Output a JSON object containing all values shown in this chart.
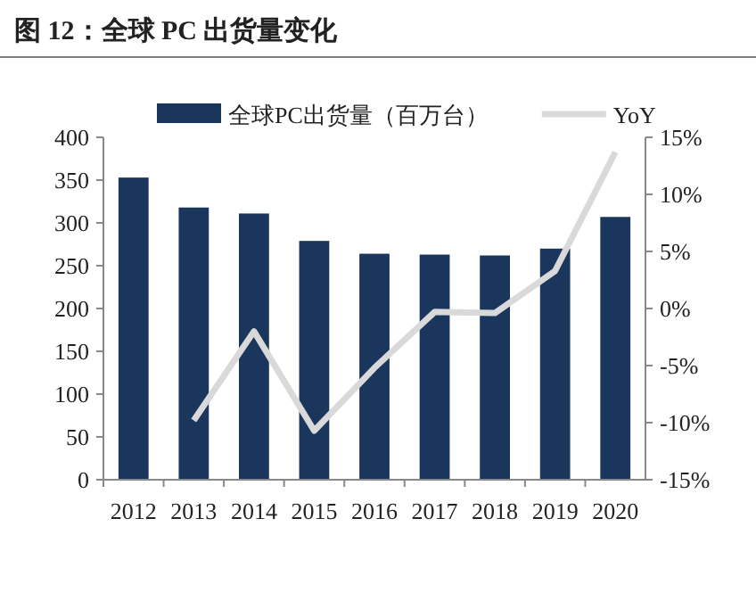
{
  "chart_data": {
    "type": "bar",
    "title": "图 12：全球 PC 出货量变化",
    "categories": [
      "2012",
      "2013",
      "2014",
      "2015",
      "2016",
      "2017",
      "2018",
      "2019",
      "2020"
    ],
    "series": [
      {
        "name": "全球PC出货量（百万台）",
        "color": "#1b365d",
        "values": [
          353,
          318,
          311,
          279,
          264,
          263,
          262,
          270,
          307
        ]
      },
      {
        "name": "YoY",
        "type": "line",
        "axis": "y2",
        "color": "#d9d9d9",
        "values": [
          null,
          -9.8,
          -2.0,
          -10.7,
          -5.2,
          -0.3,
          -0.4,
          3.3,
          13.7
        ]
      }
    ],
    "ylim": [
      0,
      400
    ],
    "yticks": [
      0,
      50,
      100,
      150,
      200,
      250,
      300,
      350,
      400
    ],
    "y2lim": [
      -15,
      15
    ],
    "y2ticks": [
      {
        "value": -15,
        "label": "-15%"
      },
      {
        "value": -10,
        "label": "-10%"
      },
      {
        "value": -5,
        "label": "-5%"
      },
      {
        "value": 0,
        "label": "0%"
      },
      {
        "value": 5,
        "label": "5%"
      },
      {
        "value": 10,
        "label": "10%"
      },
      {
        "value": 15,
        "label": "15%"
      }
    ],
    "legend": "top",
    "grid": false
  }
}
